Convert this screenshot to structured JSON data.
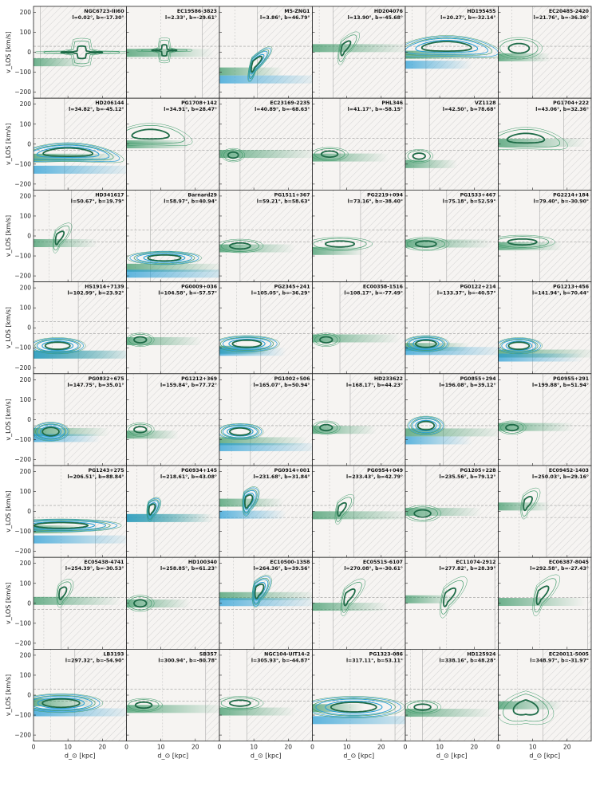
{
  "figure": {
    "ylabel": "v_LOS [km/s]",
    "xlabel": "d_⊙ [kpc]",
    "xticks": [
      "0",
      "10",
      "20"
    ],
    "yticks": [
      "200",
      "100",
      "0",
      "−100",
      "−200"
    ]
  },
  "colors": {
    "green_dark": "#1e6b47",
    "green_light": "#3f9a6a",
    "blue": "#2a9fd6",
    "hatch": "#bdbdbd",
    "bg": "#f6f4f2"
  },
  "chart_data": {
    "type": "contour-grid",
    "xlabel": "d_⊙ [kpc]",
    "ylabel": "v_LOS [km/s]",
    "xlim": [
      0,
      27
    ],
    "ylim": [
      -230,
      230
    ],
    "panels": [
      {
        "name": "NGC6723-III60",
        "coords": "l=0.02°, b=-17.30°",
        "shape": "cross",
        "cx": 14,
        "cy": 0,
        "sx": 10,
        "sy": 20,
        "blue": false,
        "hatch_d": 0
      },
      {
        "name": "EC19586-3823",
        "coords": "l=2.33°, b=-29.61°",
        "shape": "cross",
        "cx": 11,
        "cy": 10,
        "sx": 6,
        "sy": 18,
        "blue": false,
        "hatch_d": 20
      },
      {
        "name": "M5-ZNG1",
        "coords": "l=3.86°, b=46.79°",
        "shape": "tilt",
        "cx": 10,
        "cy": -60,
        "sx": 9,
        "sy": 35,
        "blue": true,
        "hatch_d": 9
      },
      {
        "name": "HD204076",
        "coords": "l=13.90°, b=-45.68°",
        "shape": "tilt",
        "cx": 9,
        "cy": 20,
        "sx": 8,
        "sy": 40,
        "blue": false,
        "hatch_d": 4
      },
      {
        "name": "HD195455",
        "coords": "l=20.27°, b=-32.14°",
        "shape": "arch",
        "cx": 12,
        "cy": 10,
        "sx": 12,
        "sy": 40,
        "blue": true,
        "hatch_d": 4
      },
      {
        "name": "EC20485-2420",
        "coords": "l=21.76°, b=-36.36°",
        "shape": "blob",
        "cx": 6,
        "cy": 20,
        "sx": 5,
        "sy": 40,
        "blue": false,
        "hatch_d": 8
      },
      {
        "name": "HD206144",
        "coords": "l=34.82°, b=-45.12°",
        "shape": "arch",
        "cx": 10,
        "cy": -60,
        "sx": 12,
        "sy": 35,
        "blue": true,
        "hatch_d": 7
      },
      {
        "name": "PG1708+142",
        "coords": "l=34.91°, b=28.47°",
        "shape": "arch",
        "cx": 7,
        "cy": 30,
        "sx": 9,
        "sy": 40,
        "blue": false,
        "hatch_d": 15
      },
      {
        "name": "EC23169-2235",
        "coords": "l=40.89°, b=-68.63°",
        "shape": "blob",
        "cx": 4,
        "cy": -55,
        "sx": 2.5,
        "sy": 25,
        "blue": false,
        "hatch_d": 4
      },
      {
        "name": "PHL346",
        "coords": "l=41.17°, b=-58.15°",
        "shape": "blob",
        "cx": 5,
        "cy": -50,
        "sx": 4,
        "sy": 25,
        "blue": false,
        "hatch_d": 6
      },
      {
        "name": "VZ1128",
        "coords": "l=42.50°, b=78.68°",
        "shape": "blob",
        "cx": 4,
        "cy": -60,
        "sx": 3,
        "sy": 25,
        "blue": false,
        "hatch_d": 5
      },
      {
        "name": "PG1704+222",
        "coords": "l=43.06°, b=32.36°",
        "shape": "arch",
        "cx": 8,
        "cy": 10,
        "sx": 9,
        "sy": 40,
        "blue": false,
        "hatch_d": 17
      },
      {
        "name": "HD341617",
        "coords": "l=50.67°, b=19.79°",
        "shape": "tilt",
        "cx": 7,
        "cy": -10,
        "sx": 7,
        "sy": 40,
        "blue": false,
        "hatch_d": 9
      },
      {
        "name": "Barnard29",
        "coords": "l=58.97°, b=40.94°",
        "shape": "blob",
        "cx": 11,
        "cy": -110,
        "sx": 8,
        "sy": 25,
        "blue": true,
        "hatch_d": 5
      },
      {
        "name": "PG1511+367",
        "coords": "l=59.21°, b=58.63°",
        "shape": "blob",
        "cx": 6,
        "cy": -50,
        "sx": 5,
        "sy": 25,
        "blue": false,
        "hatch_d": 4
      },
      {
        "name": "PG2219+094",
        "coords": "l=73.16°, b=-38.40°",
        "shape": "blob",
        "cx": 8,
        "cy": -40,
        "sx": 7,
        "sy": 25,
        "blue": false,
        "hatch_d": 12
      },
      {
        "name": "PG1533+467",
        "coords": "l=75.18°, b=52.59°",
        "shape": "blob",
        "cx": 6,
        "cy": -40,
        "sx": 5,
        "sy": 25,
        "blue": false,
        "hatch_d": 10
      },
      {
        "name": "PG2214+184",
        "coords": "l=79.40°, b=-30.90°",
        "shape": "blob",
        "cx": 7,
        "cy": -30,
        "sx": 7,
        "sy": 25,
        "blue": false,
        "hatch_d": 10
      },
      {
        "name": "HS1914+7139",
        "coords": "l=102.99°, b=23.92°",
        "shape": "blob",
        "cx": 7,
        "cy": -90,
        "sx": 6,
        "sy": 30,
        "blue": true,
        "hatch_d": 11
      },
      {
        "name": "PG0009+036",
        "coords": "l=104.58°, b=-57.57°",
        "shape": "blob",
        "cx": 4,
        "cy": -60,
        "sx": 3,
        "sy": 25,
        "blue": false,
        "hatch_d": 8
      },
      {
        "name": "PG2345+241",
        "coords": "l=105.05°, b=-36.29°",
        "shape": "blob",
        "cx": 8,
        "cy": -80,
        "sx": 7,
        "sy": 30,
        "blue": true,
        "hatch_d": 10
      },
      {
        "name": "EC00358-1516",
        "coords": "l=108.17°, b=-77.49°",
        "shape": "blob",
        "cx": 4,
        "cy": -60,
        "sx": 3,
        "sy": 25,
        "blue": false,
        "hatch_d": 6
      },
      {
        "name": "PG0122+214",
        "coords": "l=133.37°, b=-40.57°",
        "shape": "blob",
        "cx": 6,
        "cy": -80,
        "sx": 5,
        "sy": 30,
        "blue": true,
        "hatch_d": 5
      },
      {
        "name": "PG1213+456",
        "coords": "l=141.94°, b=70.44°",
        "shape": "blob",
        "cx": 6,
        "cy": -90,
        "sx": 5,
        "sy": 30,
        "blue": true,
        "hatch_d": 8
      },
      {
        "name": "PG0832+675",
        "coords": "l=147.75°, b=35.01°",
        "shape": "blob",
        "cx": 5,
        "cy": -60,
        "sx": 4,
        "sy": 35,
        "blue": true,
        "hatch_d": 7
      },
      {
        "name": "PG1212+369",
        "coords": "l=159.84°, b=77.72°",
        "shape": "blob",
        "cx": 4,
        "cy": -50,
        "sx": 3,
        "sy": 25,
        "blue": false,
        "hatch_d": 4
      },
      {
        "name": "PG1002+506",
        "coords": "l=165.07°, b=50.94°",
        "shape": "blob",
        "cx": 6,
        "cy": -60,
        "sx": 5,
        "sy": 30,
        "blue": true,
        "hatch_d": 7
      },
      {
        "name": "HD233622",
        "coords": "l=168.17°, b=44.23°",
        "shape": "blob",
        "cx": 4,
        "cy": -40,
        "sx": 3,
        "sy": 25,
        "blue": false,
        "hatch_d": 9
      },
      {
        "name": "PG0855+294",
        "coords": "l=196.08°, b=39.12°",
        "shape": "blob",
        "cx": 6,
        "cy": -30,
        "sx": 4,
        "sy": 35,
        "blue": true,
        "hatch_d": 9
      },
      {
        "name": "PG0955+291",
        "coords": "l=199.88°, b=51.94°",
        "shape": "blob",
        "cx": 4,
        "cy": -40,
        "sx": 3,
        "sy": 25,
        "blue": false,
        "hatch_d": 11
      },
      {
        "name": "PG1243+275",
        "coords": "l=206.51°, b=88.84°",
        "shape": "tail",
        "cx": 8,
        "cy": -70,
        "sx": 10,
        "sy": 30,
        "blue": true,
        "hatch_d": 16
      },
      {
        "name": "PG0934+145",
        "coords": "l=218.61°, b=43.08°",
        "shape": "tilt",
        "cx": 7,
        "cy": 10,
        "sx": 5,
        "sy": 40,
        "blue": true,
        "hatch_d": 6
      },
      {
        "name": "PG0914+001",
        "coords": "l=231.68°, b=31.84°",
        "shape": "tilt",
        "cx": 8,
        "cy": 50,
        "sx": 6,
        "sy": 50,
        "blue": true,
        "hatch_d": 5
      },
      {
        "name": "PG0954+049",
        "coords": "l=233.43°, b=42.79°",
        "shape": "tilt",
        "cx": 8,
        "cy": 10,
        "sx": 7,
        "sy": 40,
        "blue": false,
        "hatch_d": 10
      },
      {
        "name": "PG1205+228",
        "coords": "l=235.56°, b=79.12°",
        "shape": "blob",
        "cx": 5,
        "cy": -10,
        "sx": 4,
        "sy": 30,
        "blue": false,
        "hatch_d": 4
      },
      {
        "name": "EC09452-1403",
        "coords": "l=250.03°, b=29.16°",
        "shape": "tilt",
        "cx": 8,
        "cy": 40,
        "sx": 7,
        "sy": 45,
        "blue": false,
        "hatch_d": 12
      },
      {
        "name": "EC05438-4741",
        "coords": "l=254.39°, b=-30.53°",
        "shape": "tilt",
        "cx": 8,
        "cy": 50,
        "sx": 6,
        "sy": 45,
        "blue": false,
        "hatch_d": 6
      },
      {
        "name": "HD100340",
        "coords": "l=258.85°, b=61.23°",
        "shape": "blob",
        "cx": 4,
        "cy": 0,
        "sx": 3,
        "sy": 30,
        "blue": false,
        "hatch_d": 4
      },
      {
        "name": "EC10500-1358",
        "coords": "l=264.36°, b=39.56°",
        "shape": "tilt",
        "cx": 11,
        "cy": 60,
        "sx": 7,
        "sy": 50,
        "blue": true,
        "hatch_d": 8
      },
      {
        "name": "EC05515-6107",
        "coords": "l=270.08°, b=-30.61°",
        "shape": "tilt",
        "cx": 10,
        "cy": 30,
        "sx": 9,
        "sy": 45,
        "blue": false,
        "hatch_d": 4
      },
      {
        "name": "EC11074-2912",
        "coords": "l=277.82°, b=28.39°",
        "shape": "tilt",
        "cx": 12,
        "cy": 30,
        "sx": 10,
        "sy": 50,
        "blue": false,
        "hatch_d": 24
      },
      {
        "name": "EC06387-8045",
        "coords": "l=292.58°, b=-27.43°",
        "shape": "tilt",
        "cx": 12,
        "cy": 40,
        "sx": 10,
        "sy": 50,
        "blue": false,
        "hatch_d": 24
      },
      {
        "name": "LB3193",
        "coords": "l=297.32°, b=-54.90°",
        "shape": "blob",
        "cx": 8,
        "cy": -40,
        "sx": 9,
        "sy": 35,
        "blue": true,
        "hatch_d": 10
      },
      {
        "name": "SB357",
        "coords": "l=300.94°, b=-80.78°",
        "shape": "blob",
        "cx": 5,
        "cy": -50,
        "sx": 4,
        "sy": 25,
        "blue": false,
        "hatch_d": 21
      },
      {
        "name": "NGC104-UIT14-2",
        "coords": "l=305.93°, b=-44.87°",
        "shape": "blob",
        "cx": 6,
        "cy": -40,
        "sx": 5,
        "sy": 25,
        "blue": false,
        "hatch_d": 6
      },
      {
        "name": "PG1323-086",
        "coords": "l=317.11°, b=53.11°",
        "shape": "blob",
        "cx": 12,
        "cy": -60,
        "sx": 11,
        "sy": 40,
        "blue": true,
        "hatch_d": 22
      },
      {
        "name": "HD125924",
        "coords": "l=338.16°, b=48.28°",
        "shape": "blob",
        "cx": 5,
        "cy": -60,
        "sx": 4,
        "sy": 25,
        "blue": false,
        "hatch_d": 3
      },
      {
        "name": "EC20011-5005",
        "coords": "l=348.97°, b=-31.97°",
        "shape": "v",
        "cx": 8,
        "cy": -60,
        "sx": 6,
        "sy": 60,
        "blue": false,
        "hatch_d": 11
      }
    ]
  }
}
